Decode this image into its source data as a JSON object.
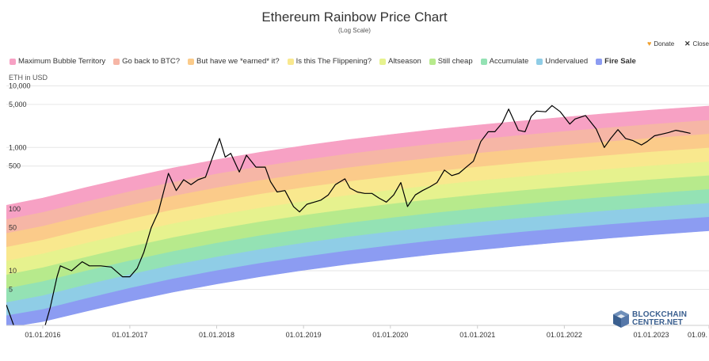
{
  "ui": {
    "donate_label": "Donate",
    "close_label": "Close",
    "logo_line1": "BLOCKCHAIN",
    "logo_line2": "CENTER.NET"
  },
  "chart_data": {
    "type": "line",
    "title": "Ethereum Rainbow Price Chart",
    "subtitle": "(Log Scale)",
    "ylabel": "ETH in USD",
    "yscale": "log",
    "ylim": [
      1.3,
      20000
    ],
    "xlim": [
      "2015-08-01",
      "2023-09-01"
    ],
    "legend": [
      {
        "name": "Maximum Bubble Territory",
        "color": "#f7a1c4"
      },
      {
        "name": "Go back to BTC?",
        "color": "#f6b6a6"
      },
      {
        "name": "But have we *earned* it?",
        "color": "#fbcb8a"
      },
      {
        "name": "Is this The Flippening?",
        "color": "#f9e88e"
      },
      {
        "name": "Altseason",
        "color": "#e6f28e"
      },
      {
        "name": "Still cheap",
        "color": "#b7ea8c"
      },
      {
        "name": "Accumulate",
        "color": "#94e2b4"
      },
      {
        "name": "Undervalued",
        "color": "#8fcde6"
      },
      {
        "name": "Fire Sale",
        "color": "#8c9cf2"
      }
    ],
    "y_ticks": [
      {
        "label": "10,000",
        "value": 10000
      },
      {
        "label": "5,000",
        "value": 5000
      },
      {
        "label": "1,000",
        "value": 1000
      },
      {
        "label": "500",
        "value": 500
      },
      {
        "label": "100",
        "value": 100
      },
      {
        "label": "50",
        "value": 50
      },
      {
        "label": "10",
        "value": 10
      },
      {
        "label": "5",
        "value": 5
      }
    ],
    "x_ticks": [
      {
        "label": "01.01.2016",
        "date": "2016-01-01"
      },
      {
        "label": "01.01.2017",
        "date": "2017-01-01"
      },
      {
        "label": "01.01.2018",
        "date": "2018-01-01"
      },
      {
        "label": "01.01.2019",
        "date": "2019-01-01"
      },
      {
        "label": "01.01.2020",
        "date": "2020-01-01"
      },
      {
        "label": "01.01.2021",
        "date": "2021-01-01"
      },
      {
        "label": "01.01.2022",
        "date": "2022-01-01"
      },
      {
        "label": "01.01.2023",
        "date": "2023-01-01"
      },
      {
        "label": "01.09.",
        "date": "2023-09-01"
      }
    ],
    "bands": {
      "dates": [
        "2015-08-01",
        "2016-01-01",
        "2016-07-01",
        "2017-01-01",
        "2017-07-01",
        "2018-01-01",
        "2018-07-01",
        "2019-01-01",
        "2019-07-01",
        "2020-01-01",
        "2020-07-01",
        "2021-01-01",
        "2021-07-01",
        "2022-01-01",
        "2022-07-01",
        "2023-01-01",
        "2023-09-01"
      ],
      "boundaries": [
        [
          1.2,
          1.5,
          2.2,
          3.2,
          4.5,
          6.1,
          8.0,
          10.2,
          12.7,
          15.4,
          18.5,
          21.8,
          25.4,
          29.4,
          33.6,
          38.2,
          44.5
        ],
        [
          1.9,
          2.4,
          3.6,
          5.3,
          7.5,
          10.2,
          13.4,
          17.1,
          21.3,
          26.0,
          31.2,
          36.9,
          43.0,
          49.7,
          56.9,
          64.6,
          75.4
        ],
        [
          3.1,
          4.0,
          6.0,
          8.8,
          12.5,
          17.0,
          22.4,
          28.6,
          35.7,
          43.5,
          52.2,
          61.8,
          72.1,
          83.3,
          95.4,
          108.4,
          126.5
        ],
        [
          5.2,
          6.8,
          10.1,
          14.8,
          20.9,
          28.5,
          37.6,
          48.0,
          59.8,
          73.0,
          87.6,
          103.6,
          120.9,
          139.7,
          159.9,
          181.7,
          212.0
        ],
        [
          8.7,
          11.4,
          16.9,
          24.8,
          35.1,
          47.8,
          63.0,
          80.5,
          100.3,
          122.4,
          146.8,
          173.7,
          202.7,
          234.2,
          268.2,
          304.7,
          355.5
        ],
        [
          14.6,
          19.1,
          28.4,
          41.5,
          58.8,
          80.2,
          105.6,
          135.0,
          168.1,
          205.2,
          246.2,
          291.2,
          339.9,
          392.7,
          449.6,
          510.9,
          596.1
        ],
        [
          24.5,
          32.0,
          47.6,
          69.6,
          98.6,
          134.4,
          177.1,
          226.3,
          281.9,
          344.0,
          412.8,
          488.2,
          569.8,
          658.4,
          753.8,
          856.6,
          999.5
        ],
        [
          41.0,
          53.7,
          79.8,
          116.7,
          165.3,
          225.4,
          296.9,
          379.4,
          472.6,
          576.8,
          692.1,
          818.5,
          955.3,
          1103.8,
          1263.8,
          1436.2,
          1675.7
        ],
        [
          68.8,
          90.0,
          133.8,
          195.7,
          277.1,
          377.9,
          497.8,
          636.2,
          792.5,
          967.1,
          1160.4,
          1372.3,
          1601.8,
          1850.7,
          2119.0,
          2408.0,
          2809.6
        ],
        [
          115.3,
          150.9,
          224.3,
          328.1,
          464.6,
          633.6,
          834.6,
          1066.6,
          1328.6,
          1621.3,
          1945.6,
          2300.9,
          2685.6,
          3102.9,
          3552.8,
          4037.3,
          4710.7
        ]
      ]
    },
    "series": [
      {
        "type": "line",
        "color": "#000000",
        "x": [
          "2015-08-01",
          "2015-09-01",
          "2015-10-20",
          "2015-12-01",
          "2016-01-01",
          "2016-02-01",
          "2016-03-01",
          "2016-03-15",
          "2016-05-01",
          "2016-06-15",
          "2016-07-15",
          "2016-09-01",
          "2016-10-15",
          "2016-12-01",
          "2017-01-01",
          "2017-02-01",
          "2017-03-01",
          "2017-04-01",
          "2017-05-01",
          "2017-06-12",
          "2017-07-15",
          "2017-08-15",
          "2017-09-15",
          "2017-10-15",
          "2017-11-15",
          "2017-12-15",
          "2018-01-13",
          "2018-02-06",
          "2018-03-01",
          "2018-04-06",
          "2018-05-06",
          "2018-06-15",
          "2018-07-24",
          "2018-08-15",
          "2018-09-12",
          "2018-10-15",
          "2018-11-20",
          "2018-12-15",
          "2019-01-15",
          "2019-02-15",
          "2019-03-15",
          "2019-04-15",
          "2019-05-15",
          "2019-06-24",
          "2019-07-15",
          "2019-08-15",
          "2019-09-15",
          "2019-10-15",
          "2019-11-15",
          "2019-12-15",
          "2020-01-15",
          "2020-02-14",
          "2020-03-13",
          "2020-04-15",
          "2020-05-15",
          "2020-06-15",
          "2020-07-15",
          "2020-08-15",
          "2020-09-15",
          "2020-10-15",
          "2020-11-15",
          "2020-12-15",
          "2021-01-15",
          "2021-02-15",
          "2021-03-15",
          "2021-04-15",
          "2021-05-12",
          "2021-06-22",
          "2021-07-20",
          "2021-08-15",
          "2021-09-06",
          "2021-10-15",
          "2021-11-10",
          "2021-12-15",
          "2022-01-24",
          "2022-02-15",
          "2022-03-31",
          "2022-05-15",
          "2022-06-18",
          "2022-07-15",
          "2022-08-14",
          "2022-09-15",
          "2022-10-15",
          "2022-11-21",
          "2022-12-15",
          "2023-01-15",
          "2023-02-15",
          "2023-03-15",
          "2023-04-15",
          "2023-05-15",
          "2023-06-15"
        ],
        "y": [
          2.8,
          1.3,
          0.42,
          0.9,
          0.95,
          2.5,
          8.0,
          12.0,
          10.0,
          14.0,
          12.0,
          12.0,
          11.5,
          8.0,
          8.0,
          11.0,
          20.0,
          50.0,
          90.0,
          380.0,
          200.0,
          300.0,
          250.0,
          300.0,
          330.0,
          700.0,
          1400.0,
          700.0,
          800.0,
          400.0,
          750.0,
          480.0,
          480.0,
          280.0,
          190.0,
          200.0,
          110.0,
          90.0,
          120.0,
          130.0,
          140.0,
          170.0,
          250.0,
          310.0,
          220.0,
          190.0,
          180.0,
          180.0,
          150.0,
          130.0,
          170.0,
          270.0,
          110.0,
          170.0,
          200.0,
          230.0,
          270.0,
          430.0,
          350.0,
          380.0,
          480.0,
          600.0,
          1250.0,
          1800.0,
          1800.0,
          2500.0,
          4200.0,
          1900.0,
          1800.0,
          3200.0,
          3900.0,
          3800.0,
          4800.0,
          3800.0,
          2400.0,
          2900.0,
          3300.0,
          2000.0,
          1000.0,
          1400.0,
          1950.0,
          1400.0,
          1300.0,
          1100.0,
          1250.0,
          1550.0,
          1650.0,
          1750.0,
          1900.0,
          1800.0,
          1700.0
        ]
      }
    ]
  }
}
